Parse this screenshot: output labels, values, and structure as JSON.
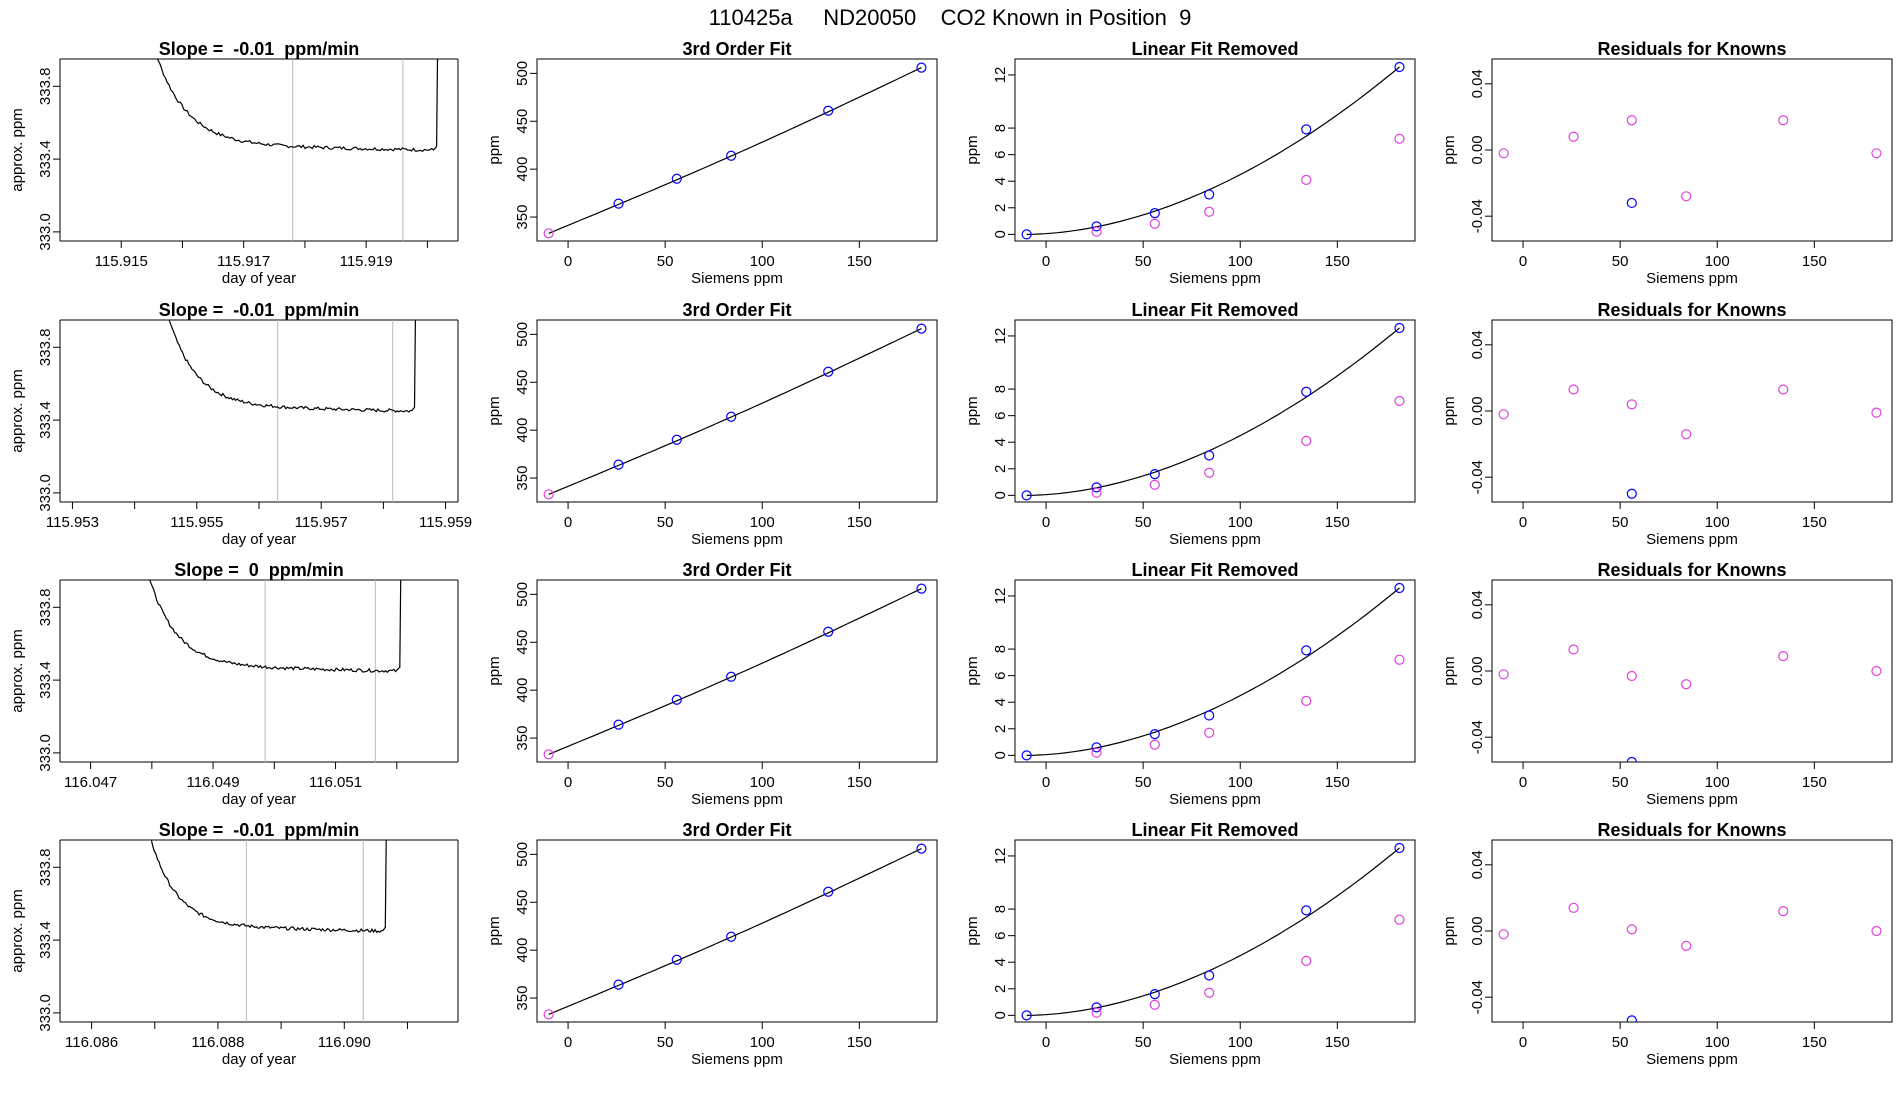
{
  "figure": {
    "title": "110425a     ND20050    CO2 Known in Position  9",
    "colors": {
      "axis": "#000000",
      "line": "#000000",
      "blue": "#0000ff",
      "magenta": "#e040e0",
      "cutoff": "#bbbbbb",
      "red": "#ff0000"
    }
  },
  "chart_data": [
    {
      "type": "line",
      "row": 1,
      "col": 1,
      "title": "Slope =  -0.01  ppm/min",
      "xlabel": "day of year",
      "ylabel": "approx. ppm",
      "xlim": [
        115.914,
        115.9205
      ],
      "ylim": [
        332.95,
        333.95
      ],
      "xticks": [
        "115.915",
        "115.917",
        "115.919"
      ],
      "xticks_minor": [
        115.915,
        115.916,
        115.917,
        115.918,
        115.919,
        115.92
      ],
      "yticks": [
        "333.0",
        "333.4",
        "333.8"
      ],
      "cutoff_x": [
        115.9178,
        115.9196
      ],
      "trace": {
        "x0": 115.9153,
        "x1": 115.92015,
        "start": 334.3,
        "plateau": 333.45
      }
    },
    {
      "type": "scatter",
      "row": 1,
      "col": 2,
      "title": "3rd Order Fit",
      "xlabel": "Siemens ppm",
      "ylabel": "ppm",
      "xlim": [
        -16,
        190
      ],
      "ylim": [
        325,
        515
      ],
      "xticks": [
        "0",
        "50",
        "100",
        "150"
      ],
      "yticks": [
        "350",
        "400",
        "450",
        "500"
      ],
      "points": [
        {
          "x": -10,
          "y": 333,
          "c": "magenta"
        },
        {
          "x": 26,
          "y": 364,
          "c": "blue"
        },
        {
          "x": 56,
          "y": 390,
          "c": "blue"
        },
        {
          "x": 84,
          "y": 414,
          "c": "blue"
        },
        {
          "x": 134,
          "y": 461,
          "c": "blue"
        },
        {
          "x": 182,
          "y": 506,
          "c": "blue"
        }
      ],
      "fit": "curve3"
    },
    {
      "type": "scatter",
      "row": 1,
      "col": 3,
      "title": "Linear Fit Removed",
      "xlabel": "Siemens ppm",
      "ylabel": "ppm",
      "xlim": [
        -16,
        190
      ],
      "ylim": [
        -0.5,
        13.2
      ],
      "xticks": [
        "0",
        "50",
        "100",
        "150"
      ],
      "yticks": [
        "0",
        "2",
        "4",
        "6",
        "8",
        "12"
      ],
      "points": [
        {
          "x": -10,
          "y": 0,
          "c": "blue"
        },
        {
          "x": 26,
          "y": 0.6,
          "c": "blue"
        },
        {
          "x": 26,
          "y": 0.2,
          "c": "magenta"
        },
        {
          "x": 56,
          "y": 1.6,
          "c": "blue"
        },
        {
          "x": 56,
          "y": 0.8,
          "c": "magenta"
        },
        {
          "x": 84,
          "y": 3.0,
          "c": "blue"
        },
        {
          "x": 84,
          "y": 1.7,
          "c": "magenta"
        },
        {
          "x": 134,
          "y": 7.9,
          "c": "blue"
        },
        {
          "x": 134,
          "y": 4.1,
          "c": "magenta"
        },
        {
          "x": 182,
          "y": 12.6,
          "c": "blue"
        },
        {
          "x": 182,
          "y": 7.2,
          "c": "magenta"
        }
      ],
      "fit": "quad"
    },
    {
      "type": "scatter",
      "row": 1,
      "col": 4,
      "title": "Residuals for Knowns",
      "xlabel": "Siemens ppm",
      "ylabel": "ppm",
      "xlim": [
        -16,
        190
      ],
      "ylim": [
        -0.055,
        0.055
      ],
      "xticks": [
        "0",
        "50",
        "100",
        "150"
      ],
      "yticks": [
        "-0.04",
        "0.00",
        "0.04"
      ],
      "points": [
        {
          "x": -10,
          "y": -0.002,
          "c": "magenta"
        },
        {
          "x": 26,
          "y": 0.008,
          "c": "magenta"
        },
        {
          "x": 56,
          "y": 0.018,
          "c": "magenta"
        },
        {
          "x": 56,
          "y": -0.032,
          "c": "blue"
        },
        {
          "x": 84,
          "y": -0.028,
          "c": "magenta"
        },
        {
          "x": 134,
          "y": 0.018,
          "c": "magenta"
        },
        {
          "x": 182,
          "y": -0.002,
          "c": "magenta"
        }
      ]
    },
    {
      "type": "line",
      "row": 2,
      "col": 1,
      "title": "Slope =  -0.01  ppm/min",
      "xlabel": "day of year",
      "ylabel": "approx. ppm",
      "xlim": [
        115.9528,
        115.9592
      ],
      "ylim": [
        332.95,
        333.95
      ],
      "xticks": [
        "115.953",
        "115.955",
        "115.957",
        "115.959"
      ],
      "xticks_minor": [
        115.953,
        115.954,
        115.955,
        115.956,
        115.957,
        115.958,
        115.959
      ],
      "yticks": [
        "333.0",
        "333.4",
        "333.8"
      ],
      "cutoff_x": [
        115.9563,
        115.95815
      ],
      "trace": {
        "x0": 115.9543,
        "x1": 115.9585,
        "start": 334.3,
        "plateau": 333.45
      }
    },
    {
      "type": "scatter",
      "row": 2,
      "col": 2,
      "title": "3rd Order Fit",
      "xlabel": "Siemens ppm",
      "ylabel": "ppm",
      "xlim": [
        -16,
        190
      ],
      "ylim": [
        325,
        515
      ],
      "xticks": [
        "0",
        "50",
        "100",
        "150"
      ],
      "yticks": [
        "350",
        "400",
        "450",
        "500"
      ],
      "points": [
        {
          "x": -10,
          "y": 333,
          "c": "magenta"
        },
        {
          "x": 26,
          "y": 364,
          "c": "blue"
        },
        {
          "x": 56,
          "y": 390,
          "c": "blue"
        },
        {
          "x": 84,
          "y": 414,
          "c": "blue"
        },
        {
          "x": 134,
          "y": 461,
          "c": "blue"
        },
        {
          "x": 182,
          "y": 506,
          "c": "blue"
        }
      ],
      "fit": "curve3"
    },
    {
      "type": "scatter",
      "row": 2,
      "col": 3,
      "title": "Linear Fit Removed",
      "xlabel": "Siemens ppm",
      "ylabel": "ppm",
      "xlim": [
        -16,
        190
      ],
      "ylim": [
        -0.5,
        13.2
      ],
      "xticks": [
        "0",
        "50",
        "100",
        "150"
      ],
      "yticks": [
        "0",
        "2",
        "4",
        "6",
        "8",
        "12"
      ],
      "points": [
        {
          "x": -10,
          "y": 0,
          "c": "blue"
        },
        {
          "x": 26,
          "y": 0.6,
          "c": "blue"
        },
        {
          "x": 26,
          "y": 0.2,
          "c": "magenta"
        },
        {
          "x": 56,
          "y": 1.6,
          "c": "blue"
        },
        {
          "x": 56,
          "y": 0.8,
          "c": "magenta"
        },
        {
          "x": 84,
          "y": 3.0,
          "c": "blue"
        },
        {
          "x": 84,
          "y": 1.7,
          "c": "magenta"
        },
        {
          "x": 134,
          "y": 7.8,
          "c": "blue"
        },
        {
          "x": 134,
          "y": 4.1,
          "c": "magenta"
        },
        {
          "x": 182,
          "y": 12.6,
          "c": "blue"
        },
        {
          "x": 182,
          "y": 7.1,
          "c": "magenta"
        }
      ],
      "fit": "quad"
    },
    {
      "type": "scatter",
      "row": 2,
      "col": 4,
      "title": "Residuals for Knowns",
      "xlabel": "Siemens ppm",
      "ylabel": "ppm",
      "xlim": [
        -16,
        190
      ],
      "ylim": [
        -0.055,
        0.055
      ],
      "xticks": [
        "0",
        "50",
        "100",
        "150"
      ],
      "yticks": [
        "-0.04",
        "0.00",
        "0.04"
      ],
      "points": [
        {
          "x": -10,
          "y": -0.002,
          "c": "magenta"
        },
        {
          "x": 26,
          "y": 0.013,
          "c": "magenta"
        },
        {
          "x": 56,
          "y": 0.004,
          "c": "magenta"
        },
        {
          "x": 56,
          "y": -0.05,
          "c": "blue"
        },
        {
          "x": 84,
          "y": -0.014,
          "c": "magenta"
        },
        {
          "x": 134,
          "y": 0.013,
          "c": "magenta"
        },
        {
          "x": 182,
          "y": -0.001,
          "c": "magenta"
        }
      ]
    },
    {
      "type": "line",
      "row": 3,
      "col": 1,
      "title": "Slope =  0  ppm/min",
      "xlabel": "day of year",
      "ylabel": "approx. ppm",
      "xlim": [
        116.0465,
        116.053
      ],
      "ylim": [
        332.95,
        333.95
      ],
      "xticks": [
        "116.047",
        "116.049",
        "116.051"
      ],
      "xticks_minor": [
        116.047,
        116.048,
        116.049,
        116.05,
        116.051,
        116.052
      ],
      "yticks": [
        "333.0",
        "333.4",
        "333.8"
      ],
      "cutoff_x": [
        116.04985,
        116.05165
      ],
      "trace": {
        "x0": 116.0477,
        "x1": 116.05205,
        "start": 334.3,
        "plateau": 333.45
      }
    },
    {
      "type": "scatter",
      "row": 3,
      "col": 2,
      "title": "3rd Order Fit",
      "xlabel": "Siemens ppm",
      "ylabel": "ppm",
      "xlim": [
        -16,
        190
      ],
      "ylim": [
        325,
        515
      ],
      "xticks": [
        "0",
        "50",
        "100",
        "150"
      ],
      "yticks": [
        "350",
        "400",
        "450",
        "500"
      ],
      "points": [
        {
          "x": -10,
          "y": 333,
          "c": "magenta"
        },
        {
          "x": 26,
          "y": 364,
          "c": "blue"
        },
        {
          "x": 56,
          "y": 390,
          "c": "blue"
        },
        {
          "x": 84,
          "y": 414,
          "c": "blue"
        },
        {
          "x": 134,
          "y": 461,
          "c": "blue"
        },
        {
          "x": 182,
          "y": 506,
          "c": "blue"
        }
      ],
      "fit": "curve3"
    },
    {
      "type": "scatter",
      "row": 3,
      "col": 3,
      "title": "Linear Fit Removed",
      "xlabel": "Siemens ppm",
      "ylabel": "ppm",
      "xlim": [
        -16,
        190
      ],
      "ylim": [
        -0.5,
        13.2
      ],
      "xticks": [
        "0",
        "50",
        "100",
        "150"
      ],
      "yticks": [
        "0",
        "2",
        "4",
        "6",
        "8",
        "12"
      ],
      "points": [
        {
          "x": -10,
          "y": 0,
          "c": "blue"
        },
        {
          "x": 26,
          "y": 0.6,
          "c": "blue"
        },
        {
          "x": 26,
          "y": 0.2,
          "c": "magenta"
        },
        {
          "x": 56,
          "y": 1.6,
          "c": "blue"
        },
        {
          "x": 56,
          "y": 0.8,
          "c": "magenta"
        },
        {
          "x": 84,
          "y": 3.0,
          "c": "blue"
        },
        {
          "x": 84,
          "y": 1.7,
          "c": "magenta"
        },
        {
          "x": 134,
          "y": 7.9,
          "c": "blue"
        },
        {
          "x": 134,
          "y": 4.1,
          "c": "magenta"
        },
        {
          "x": 182,
          "y": 12.6,
          "c": "blue"
        },
        {
          "x": 182,
          "y": 7.2,
          "c": "magenta"
        }
      ],
      "fit": "quad"
    },
    {
      "type": "scatter",
      "row": 3,
      "col": 4,
      "title": "Residuals for Knowns",
      "xlabel": "Siemens ppm",
      "ylabel": "ppm",
      "xlim": [
        -16,
        190
      ],
      "ylim": [
        -0.055,
        0.055
      ],
      "xticks": [
        "0",
        "50",
        "100",
        "150"
      ],
      "yticks": [
        "-0.04",
        "0.00",
        "0.04"
      ],
      "points": [
        {
          "x": -10,
          "y": -0.002,
          "c": "magenta"
        },
        {
          "x": 26,
          "y": 0.013,
          "c": "magenta"
        },
        {
          "x": 56,
          "y": -0.003,
          "c": "magenta"
        },
        {
          "x": 56,
          "y": -0.055,
          "c": "blue"
        },
        {
          "x": 84,
          "y": -0.008,
          "c": "magenta"
        },
        {
          "x": 134,
          "y": 0.009,
          "c": "magenta"
        },
        {
          "x": 182,
          "y": 0.0,
          "c": "magenta"
        }
      ]
    },
    {
      "type": "line",
      "row": 4,
      "col": 1,
      "title": "Slope =  -0.01  ppm/min",
      "xlabel": "day of year",
      "ylabel": "approx. ppm",
      "xlim": [
        116.0855,
        116.0918
      ],
      "ylim": [
        332.95,
        333.95
      ],
      "xticks": [
        "116.086",
        "116.088",
        "116.090"
      ],
      "xticks_minor": [
        116.086,
        116.087,
        116.088,
        116.089,
        116.09,
        116.091
      ],
      "yticks": [
        "333.0",
        "333.4",
        "333.8"
      ],
      "cutoff_x": [
        116.08845,
        116.0903
      ],
      "trace": {
        "x0": 116.0867,
        "x1": 116.09065,
        "start": 334.3,
        "plateau": 333.45
      }
    },
    {
      "type": "scatter",
      "row": 4,
      "col": 2,
      "title": "3rd Order Fit",
      "xlabel": "Siemens ppm",
      "ylabel": "ppm",
      "xlim": [
        -16,
        190
      ],
      "ylim": [
        325,
        515
      ],
      "xticks": [
        "0",
        "50",
        "100",
        "150"
      ],
      "yticks": [
        "350",
        "400",
        "450",
        "500"
      ],
      "points": [
        {
          "x": -10,
          "y": 333,
          "c": "magenta"
        },
        {
          "x": 26,
          "y": 364,
          "c": "blue"
        },
        {
          "x": 56,
          "y": 390,
          "c": "blue"
        },
        {
          "x": 84,
          "y": 414,
          "c": "blue"
        },
        {
          "x": 134,
          "y": 461,
          "c": "blue"
        },
        {
          "x": 182,
          "y": 506,
          "c": "blue"
        }
      ],
      "fit": "curve3"
    },
    {
      "type": "scatter",
      "row": 4,
      "col": 3,
      "title": "Linear Fit Removed",
      "xlabel": "Siemens ppm",
      "ylabel": "ppm",
      "xlim": [
        -16,
        190
      ],
      "ylim": [
        -0.5,
        13.2
      ],
      "xticks": [
        "0",
        "50",
        "100",
        "150"
      ],
      "yticks": [
        "0",
        "2",
        "4",
        "6",
        "8",
        "12"
      ],
      "points": [
        {
          "x": -10,
          "y": 0,
          "c": "blue"
        },
        {
          "x": 26,
          "y": 0.6,
          "c": "blue"
        },
        {
          "x": 26,
          "y": 0.2,
          "c": "magenta"
        },
        {
          "x": 56,
          "y": 1.6,
          "c": "blue"
        },
        {
          "x": 56,
          "y": 0.8,
          "c": "magenta"
        },
        {
          "x": 84,
          "y": 3.0,
          "c": "blue"
        },
        {
          "x": 84,
          "y": 1.7,
          "c": "magenta"
        },
        {
          "x": 134,
          "y": 7.9,
          "c": "blue"
        },
        {
          "x": 134,
          "y": 4.1,
          "c": "magenta"
        },
        {
          "x": 182,
          "y": 12.6,
          "c": "blue"
        },
        {
          "x": 182,
          "y": 7.2,
          "c": "magenta"
        }
      ],
      "fit": "quad"
    },
    {
      "type": "scatter",
      "row": 4,
      "col": 4,
      "title": "Residuals for Knowns",
      "xlabel": "Siemens ppm",
      "ylabel": "ppm",
      "xlim": [
        -16,
        190
      ],
      "ylim": [
        -0.055,
        0.055
      ],
      "xticks": [
        "0",
        "50",
        "100",
        "150"
      ],
      "yticks": [
        "-0.04",
        "0.00",
        "0.04"
      ],
      "points": [
        {
          "x": -10,
          "y": -0.002,
          "c": "magenta"
        },
        {
          "x": 26,
          "y": 0.014,
          "c": "magenta"
        },
        {
          "x": 56,
          "y": 0.001,
          "c": "magenta"
        },
        {
          "x": 56,
          "y": -0.054,
          "c": "blue"
        },
        {
          "x": 84,
          "y": -0.009,
          "c": "magenta"
        },
        {
          "x": 134,
          "y": 0.012,
          "c": "magenta"
        },
        {
          "x": 182,
          "y": 0.0,
          "c": "magenta"
        }
      ]
    }
  ]
}
